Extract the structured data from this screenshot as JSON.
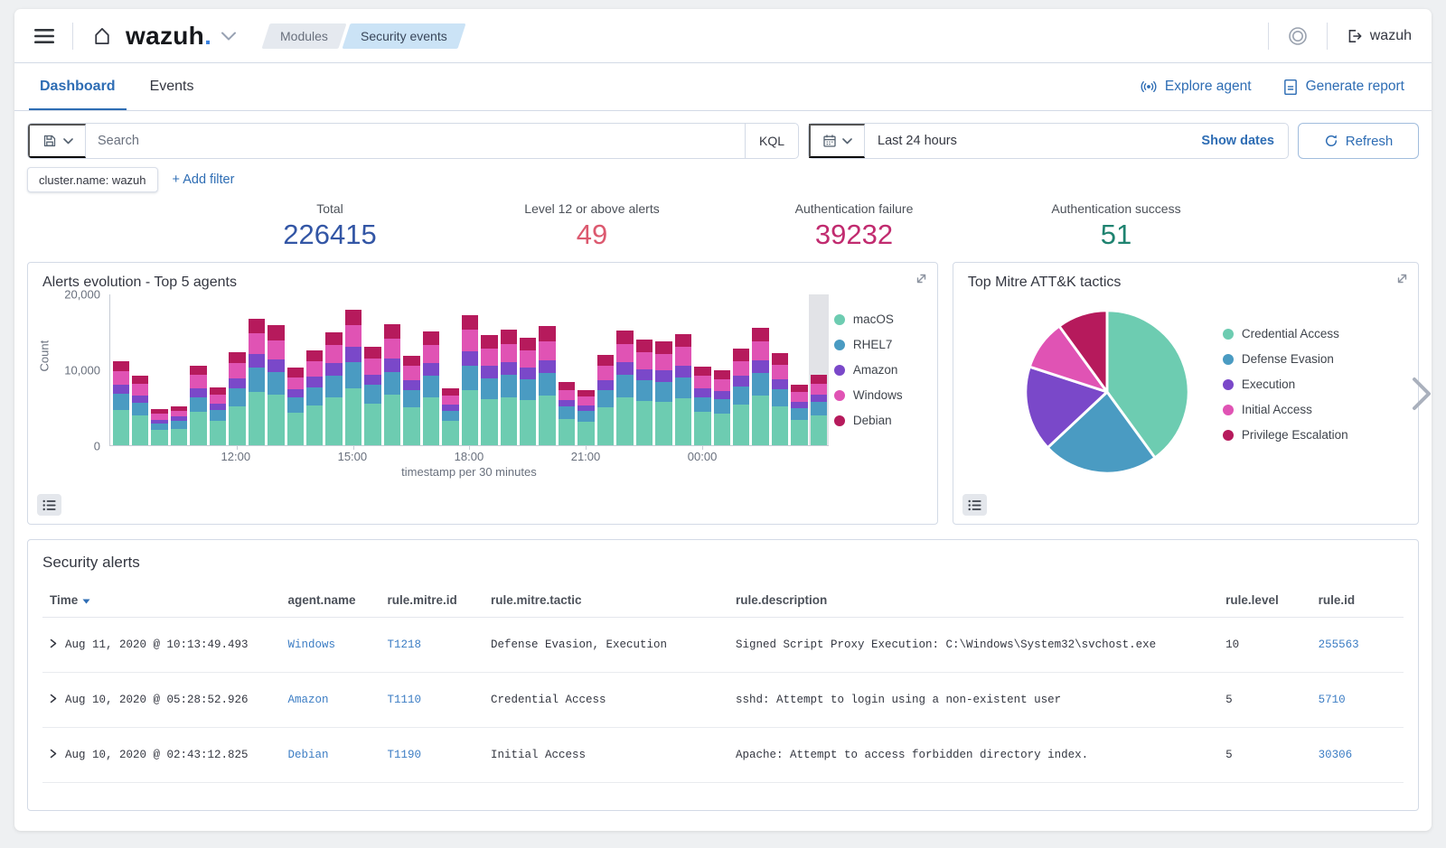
{
  "header": {
    "logo_text": "wazuh",
    "logo_dot": ".",
    "breadcrumbs": [
      {
        "label": "Modules"
      },
      {
        "label": "Security events"
      }
    ],
    "user_label": "wazuh"
  },
  "tabs": {
    "items": [
      {
        "label": "Dashboard",
        "active": true
      },
      {
        "label": "Events",
        "active": false
      }
    ]
  },
  "header_actions": {
    "explore_agent": "Explore agent",
    "generate_report": "Generate report"
  },
  "query_bar": {
    "search_placeholder": "Search",
    "language_label": "KQL",
    "time_range": "Last 24 hours",
    "show_dates_label": "Show dates",
    "refresh_label": "Refresh"
  },
  "filter_bar": {
    "filters": [
      {
        "label": "cluster.name: wazuh"
      }
    ],
    "add_filter_label": "+ Add filter"
  },
  "stats": [
    {
      "label": "Total",
      "value": "226415",
      "color": "#3356a5"
    },
    {
      "label": "Level 12 or above alerts",
      "value": "49",
      "color": "#dc596f"
    },
    {
      "label": "Authentication failure",
      "value": "39232",
      "color": "#c12b6f"
    },
    {
      "label": "Authentication success",
      "value": "51",
      "color": "#1f8370"
    }
  ],
  "chart_data": [
    {
      "type": "bar",
      "title": "Alerts evolution - Top 5 agents",
      "stacked": true,
      "xlabel": "timestamp per 30 minutes",
      "ylabel": "Count",
      "ylim": [
        0,
        20000
      ],
      "grid": false,
      "legend_position": "right",
      "yticks": [
        {
          "label": "0",
          "value": 0
        },
        {
          "label": "10,000",
          "value": 10000
        },
        {
          "label": "20,000",
          "value": 20000
        }
      ],
      "x_ticks": [
        {
          "label": "12:00",
          "index": 6
        },
        {
          "label": "15:00",
          "index": 12
        },
        {
          "label": "18:00",
          "index": 18
        },
        {
          "label": "21:00",
          "index": 24
        },
        {
          "label": "00:00",
          "index": 30
        }
      ],
      "bar_count": 37,
      "highlighted_index": 36,
      "series": [
        {
          "name": "macOS",
          "color": "#6dccb1",
          "values": [
            4700,
            3900,
            2000,
            2200,
            4400,
            3200,
            5200,
            7100,
            6700,
            4300,
            5300,
            6300,
            7600,
            5500,
            6700,
            5000,
            6300,
            3200,
            7300,
            6100,
            6400,
            6000,
            6600,
            3500,
            3100,
            5000,
            6400,
            5900,
            5800,
            6200,
            4400,
            4200,
            5400,
            6600,
            5100,
            3400,
            3900
          ]
        },
        {
          "name": "RHEL7",
          "color": "#4a9bc2",
          "values": [
            2100,
            1700,
            900,
            1000,
            2000,
            1500,
            2300,
            3200,
            3000,
            2000,
            2400,
            2900,
            3400,
            2500,
            3000,
            2300,
            2900,
            1400,
            3300,
            2800,
            2900,
            2700,
            3000,
            1600,
            1400,
            2300,
            2900,
            2700,
            2600,
            2800,
            2000,
            1900,
            2400,
            3000,
            2300,
            1500,
            1800
          ]
        },
        {
          "name": "Amazon",
          "color": "#7a48c9",
          "values": [
            1200,
            1000,
            500,
            600,
            1200,
            800,
            1400,
            1800,
            1700,
            1100,
            1400,
            1700,
            2000,
            1400,
            1800,
            1300,
            1700,
            800,
            1900,
            1600,
            1700,
            1600,
            1700,
            900,
            800,
            1300,
            1700,
            1500,
            1500,
            1600,
            1100,
            1100,
            1400,
            1700,
            1300,
            900,
            1000
          ]
        },
        {
          "name": "Windows",
          "color": "#e053b4",
          "values": [
            1800,
            1500,
            800,
            800,
            1700,
            1200,
            2000,
            2700,
            2500,
            1600,
            2000,
            2400,
            2900,
            2100,
            2600,
            1900,
            2400,
            1200,
            2800,
            2300,
            2400,
            2300,
            2500,
            1300,
            1200,
            1900,
            2400,
            2200,
            2200,
            2400,
            1700,
            1600,
            2000,
            2500,
            2000,
            1300,
            1500
          ]
        },
        {
          "name": "Debian",
          "color": "#b61a5c",
          "values": [
            1400,
            1100,
            600,
            600,
            1200,
            1000,
            1400,
            2000,
            2000,
            1300,
            1500,
            1700,
            2100,
            1500,
            1900,
            1400,
            1800,
            1000,
            2000,
            1800,
            1900,
            1700,
            2000,
            1100,
            800,
            1500,
            1800,
            1700,
            1700,
            1700,
            1200,
            1100,
            1600,
            1800,
            1500,
            900,
            1200
          ]
        }
      ]
    },
    {
      "type": "pie",
      "title": "Top Mitre ATT&K tactics",
      "legend_position": "right",
      "slices": [
        {
          "label": "Credential Access",
          "value": 40,
          "color": "#6dccb1"
        },
        {
          "label": "Defense Evasion",
          "value": 23,
          "color": "#4a9bc2"
        },
        {
          "label": "Execution",
          "value": 17,
          "color": "#7a48c9"
        },
        {
          "label": "Initial Access",
          "value": 10,
          "color": "#e053b4"
        },
        {
          "label": "Privilege Escalation",
          "value": 10,
          "color": "#b61a5c"
        }
      ]
    }
  ],
  "alerts_table": {
    "title": "Security alerts",
    "sorted_column": "Time",
    "columns": [
      "Time",
      "agent.name",
      "rule.mitre.id",
      "rule.mitre.tactic",
      "rule.description",
      "rule.level",
      "rule.id"
    ],
    "rows": [
      {
        "time": "Aug 11, 2020 @ 10:13:49.493",
        "agent_name": "Windows",
        "rule_mitre_id": "T1218",
        "rule_mitre_tactic": "Defense Evasion, Execution",
        "rule_description": "Signed Script Proxy Execution: C:\\Windows\\System32\\svchost.exe",
        "rule_level": "10",
        "rule_id": "255563"
      },
      {
        "time": "Aug 10, 2020 @ 05:28:52.926",
        "agent_name": "Amazon",
        "rule_mitre_id": "T1110",
        "rule_mitre_tactic": "Credential Access",
        "rule_description": "sshd: Attempt to login using a non-existent user",
        "rule_level": "5",
        "rule_id": "5710"
      },
      {
        "time": "Aug 10, 2020 @ 02:43:12.825",
        "agent_name": "Debian",
        "rule_mitre_id": "T1190",
        "rule_mitre_tactic": "Initial Access",
        "rule_description": "Apache: Attempt to access forbidden directory index.",
        "rule_level": "5",
        "rule_id": "30306"
      }
    ]
  }
}
